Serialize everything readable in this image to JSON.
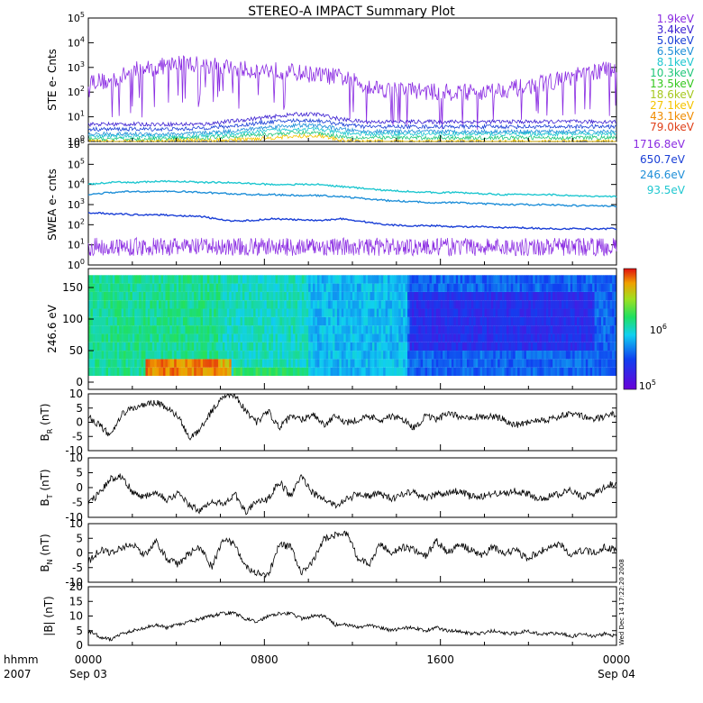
{
  "title": "STEREO-A IMPACT Summary Plot",
  "side_stamp": "Wed Dec 14 17:22:20 2008",
  "panels": {
    "ste": {
      "ylabel": "STE e- Cnts",
      "yticks": [
        "10^0",
        "10^1",
        "10^2",
        "10^3",
        "10^4",
        "10^5"
      ],
      "legend": [
        {
          "label": "1.9keV",
          "color": "#8a2be2"
        },
        {
          "label": "3.4keV",
          "color": "#3b1fd1"
        },
        {
          "label": "5.0keV",
          "color": "#1a3fd6"
        },
        {
          "label": "6.5keV",
          "color": "#1f8fd8"
        },
        {
          "label": "8.1keV",
          "color": "#1fc7d0"
        },
        {
          "label": "10.3keV",
          "color": "#22c77a"
        },
        {
          "label": "13.5keV",
          "color": "#35c81f"
        },
        {
          "label": "18.6keV",
          "color": "#a6c81f"
        },
        {
          "label": "27.1keV",
          "color": "#f5c400"
        },
        {
          "label": "43.1keV",
          "color": "#f08c00"
        },
        {
          "label": "79.0keV",
          "color": "#e0401a"
        }
      ]
    },
    "swea": {
      "ylabel": "SWEA e- cnts",
      "yticks": [
        "10^0",
        "10^1",
        "10^2",
        "10^3",
        "10^4",
        "10^5",
        "10^6"
      ],
      "legend": [
        {
          "label": "1716.8eV",
          "color": "#8a2be2"
        },
        {
          "label": "650.7eV",
          "color": "#1a3fd6"
        },
        {
          "label": "246.6eV",
          "color": "#1f8fd8"
        },
        {
          "label": "93.5eV",
          "color": "#1fc7d0"
        }
      ]
    },
    "spec": {
      "ylabel": "246.6 eV",
      "yticks": [
        "0",
        "50",
        "100",
        "150"
      ],
      "colorbar_ticks": [
        "10^6",
        "10^5"
      ]
    },
    "br": {
      "ylabel_main": "B",
      "ylabel_sub": "R",
      "ylabel_unit": "(nT)",
      "yticks": [
        "10",
        "5",
        "0",
        "-5",
        "-10"
      ]
    },
    "bt": {
      "ylabel_main": "B",
      "ylabel_sub": "T",
      "ylabel_unit": "(nT)",
      "yticks": [
        "10",
        "5",
        "0",
        "-5",
        "-10"
      ]
    },
    "bn": {
      "ylabel_main": "B",
      "ylabel_sub": "N",
      "ylabel_unit": "(nT)",
      "yticks": [
        "10",
        "5",
        "0",
        "-5",
        "-10"
      ]
    },
    "bmag": {
      "ylabel": "|B| (nT)",
      "yticks": [
        "20",
        "15",
        "10",
        "5",
        "0"
      ]
    }
  },
  "xaxis": {
    "row1_label": "hhmm",
    "row2_label": "2007",
    "ticks": [
      {
        "top": "0000",
        "bottom": "Sep 03"
      },
      {
        "top": "0800",
        "bottom": ""
      },
      {
        "top": "1600",
        "bottom": ""
      },
      {
        "top": "0000",
        "bottom": "Sep 04"
      }
    ]
  },
  "chart_data": {
    "type": "line",
    "x_range_hours": [
      0,
      24
    ],
    "ste_counts_log10": [
      {
        "name": "1.9keV",
        "values": [
          2.5,
          2.4,
          2.9,
          3.0,
          3.2,
          3.1,
          3.0,
          2.9,
          2.9,
          2.8,
          2.7,
          2.6,
          2.3,
          2.1,
          2.1,
          2.0,
          2.0,
          2.0,
          2.1,
          2.2,
          2.4,
          2.6,
          2.8,
          3.0
        ]
      },
      {
        "name": "3.4keV",
        "values": [
          0.7,
          0.7,
          0.7,
          0.7,
          0.7,
          0.7,
          0.8,
          0.9,
          1.0,
          1.1,
          1.1,
          0.9,
          0.8,
          0.8,
          0.8,
          0.8,
          0.8,
          0.8,
          0.8,
          0.8,
          0.8,
          0.8,
          0.8,
          0.8
        ]
      },
      {
        "name": "5.0keV",
        "values": [
          0.5,
          0.5,
          0.5,
          0.5,
          0.5,
          0.55,
          0.6,
          0.7,
          0.8,
          0.85,
          0.85,
          0.7,
          0.6,
          0.6,
          0.6,
          0.6,
          0.6,
          0.6,
          0.6,
          0.6,
          0.6,
          0.6,
          0.6,
          0.6
        ]
      },
      {
        "name": "6.5keV",
        "values": [
          0.3,
          0.3,
          0.3,
          0.3,
          0.3,
          0.35,
          0.4,
          0.5,
          0.6,
          0.65,
          0.65,
          0.5,
          0.4,
          0.4,
          0.4,
          0.4,
          0.4,
          0.4,
          0.4,
          0.4,
          0.4,
          0.4,
          0.4,
          0.4
        ]
      },
      {
        "name": "8.1keV",
        "values": [
          0.2,
          0.2,
          0.2,
          0.2,
          0.2,
          0.25,
          0.3,
          0.35,
          0.45,
          0.5,
          0.5,
          0.35,
          0.3,
          0.3,
          0.3,
          0.3,
          0.3,
          0.3,
          0.3,
          0.3,
          0.3,
          0.3,
          0.3,
          0.3
        ]
      },
      {
        "name": "10.3keV",
        "values": [
          0.1,
          0.1,
          0.1,
          0.1,
          0.12,
          0.15,
          0.2,
          0.25,
          0.3,
          0.35,
          0.35,
          0.2,
          0.15,
          0.15,
          0.15,
          0.15,
          0.15,
          0.15,
          0.15,
          0.15,
          0.15,
          0.15,
          0.15,
          0.15
        ]
      },
      {
        "name": "27.1keV",
        "values": [
          0.0,
          0.0,
          0.0,
          0.0,
          0.05,
          0.05,
          0.05,
          0.1,
          0.15,
          0.2,
          0.25,
          0.05,
          0.0,
          0.0,
          0.0,
          0.0,
          0.0,
          0.0,
          0.0,
          0.0,
          0.0,
          0.0,
          0.0,
          0.0
        ]
      }
    ],
    "swea_counts_log10": [
      {
        "name": "93.5eV",
        "values": [
          4.0,
          4.1,
          4.1,
          4.15,
          4.15,
          4.1,
          4.1,
          4.05,
          4.0,
          4.0,
          4.0,
          3.9,
          3.8,
          3.7,
          3.65,
          3.6,
          3.6,
          3.55,
          3.5,
          3.5,
          3.5,
          3.45,
          3.4,
          3.4
        ]
      },
      {
        "name": "246.6eV",
        "values": [
          3.5,
          3.6,
          3.65,
          3.65,
          3.65,
          3.6,
          3.55,
          3.5,
          3.5,
          3.45,
          3.45,
          3.4,
          3.3,
          3.2,
          3.15,
          3.1,
          3.1,
          3.05,
          3.0,
          3.0,
          3.0,
          2.95,
          2.95,
          2.9
        ]
      },
      {
        "name": "650.7eV",
        "values": [
          2.6,
          2.55,
          2.5,
          2.5,
          2.45,
          2.4,
          2.2,
          2.2,
          2.3,
          2.25,
          2.2,
          2.3,
          2.15,
          2.0,
          1.95,
          1.95,
          1.9,
          1.9,
          1.85,
          1.85,
          1.8,
          1.8,
          1.8,
          1.8
        ]
      },
      {
        "name": "1716.8eV",
        "values": [
          0.9,
          0.9,
          0.9,
          0.9,
          0.9,
          0.9,
          0.9,
          0.9,
          0.9,
          0.9,
          0.9,
          0.9,
          0.9,
          0.9,
          0.9,
          0.9,
          0.9,
          0.9,
          0.9,
          0.9,
          0.9,
          0.9,
          0.9,
          0.9
        ]
      }
    ],
    "B_R_nT": [
      2,
      -1,
      -5,
      3,
      5,
      6,
      7,
      5,
      2,
      -6,
      -2,
      4,
      9,
      10,
      4,
      0,
      4,
      -2,
      2,
      1,
      3,
      -1,
      2,
      0,
      1,
      2,
      1,
      2,
      1,
      -2,
      2,
      1,
      3,
      2,
      2,
      2,
      2,
      1,
      -1,
      0,
      1,
      1,
      2,
      3,
      2,
      1,
      2,
      3
    ],
    "B_T_nT": [
      -5,
      -2,
      3,
      4,
      -2,
      -3,
      -1,
      -4,
      -2,
      -6,
      -8,
      -4,
      -6,
      -2,
      -8,
      -5,
      -4,
      2,
      -3,
      4,
      -2,
      -4,
      -6,
      -4,
      -2,
      -3,
      -2,
      -4,
      -2,
      -1,
      -4,
      -2,
      -2,
      -1,
      -3,
      -3,
      -2,
      -2,
      -1,
      -2,
      -4,
      -3,
      -2,
      -1,
      -3,
      -2,
      0,
      2
    ],
    "B_N_nT": [
      -3,
      1,
      0,
      2,
      3,
      -1,
      4,
      -2,
      -4,
      0,
      2,
      -5,
      5,
      3,
      -5,
      -7,
      -8,
      3,
      2,
      -7,
      -3,
      5,
      6,
      7,
      -2,
      -4,
      3,
      0,
      2,
      1,
      -1,
      4,
      0,
      3,
      1,
      -1,
      2,
      0,
      1,
      -2,
      0,
      2,
      3,
      -1,
      1,
      0,
      2,
      1
    ],
    "B_mag_nT": [
      5,
      3,
      2,
      4,
      5,
      6,
      7,
      6,
      7,
      8,
      9,
      10,
      11,
      11,
      9,
      8,
      10,
      11,
      11,
      9,
      10,
      10,
      7,
      7,
      6,
      7,
      6,
      5,
      6,
      6,
      5,
      6,
      5,
      5,
      4,
      4,
      5,
      4,
      4,
      5,
      4,
      4,
      4,
      3,
      4,
      3,
      4,
      3
    ],
    "spectrogram_note": "246.6 eV pitch-angle distribution, log color scale 10^5 to 10^6"
  }
}
